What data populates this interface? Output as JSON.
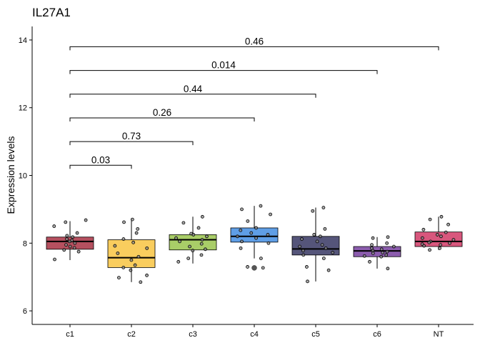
{
  "chart_data": {
    "type": "boxplot",
    "title": "IL27A1",
    "xlabel": "",
    "ylabel": "Expression levels",
    "ylim": [
      5.6,
      14.4
    ],
    "yticks": [
      6,
      8,
      10,
      12,
      14
    ],
    "categories": [
      "c1",
      "c2",
      "c3",
      "c4",
      "c5",
      "c6",
      "NT"
    ],
    "colors": [
      "#B5505F",
      "#F9CD5E",
      "#A9CD68",
      "#5F9EE6",
      "#55557A",
      "#8C5DAE",
      "#D8577D"
    ],
    "boxes": [
      {
        "group": "c1",
        "q1": 7.82,
        "median": 8.05,
        "q3": 8.18,
        "whisker_low": 7.5,
        "whisker_high": 8.65,
        "outliers": []
      },
      {
        "group": "c2",
        "q1": 7.28,
        "median": 7.57,
        "q3": 8.1,
        "whisker_low": 6.85,
        "whisker_high": 8.7,
        "outliers": []
      },
      {
        "group": "c3",
        "q1": 7.8,
        "median": 8.1,
        "q3": 8.25,
        "whisker_low": 7.4,
        "whisker_high": 8.78,
        "outliers": []
      },
      {
        "group": "c4",
        "q1": 8.03,
        "median": 8.2,
        "q3": 8.45,
        "whisker_low": 7.55,
        "whisker_high": 9.1,
        "outliers": [
          7.27
        ]
      },
      {
        "group": "c5",
        "q1": 7.65,
        "median": 7.83,
        "q3": 8.2,
        "whisker_low": 6.87,
        "whisker_high": 9.05,
        "outliers": []
      },
      {
        "group": "c6",
        "q1": 7.6,
        "median": 7.77,
        "q3": 7.9,
        "whisker_low": 7.25,
        "whisker_high": 8.18,
        "outliers": []
      },
      {
        "group": "NT",
        "q1": 7.9,
        "median": 8.05,
        "q3": 8.33,
        "whisker_low": 7.8,
        "whisker_high": 8.78,
        "outliers": []
      }
    ],
    "points": [
      {
        "group": "c1",
        "values": [
          8.68,
          8.62,
          8.5,
          8.3,
          8.22,
          8.18,
          8.12,
          8.08,
          8.05,
          8.0,
          7.95,
          7.9,
          7.86,
          7.8,
          7.75,
          7.52
        ]
      },
      {
        "group": "c2",
        "values": [
          8.7,
          8.62,
          8.42,
          8.3,
          8.12,
          8.02,
          7.92,
          7.85,
          7.7,
          7.6,
          7.5,
          7.35,
          7.28,
          7.2,
          7.05,
          6.98,
          6.85
        ]
      },
      {
        "group": "c3",
        "values": [
          8.78,
          8.6,
          8.45,
          8.28,
          8.25,
          8.2,
          8.15,
          8.1,
          8.05,
          7.98,
          7.9,
          7.82,
          7.78,
          7.65,
          7.55,
          7.45
        ]
      },
      {
        "group": "c4",
        "values": [
          9.1,
          9.0,
          8.85,
          8.65,
          8.45,
          8.38,
          8.3,
          8.25,
          8.2,
          8.15,
          8.05,
          8.0,
          7.85,
          7.55,
          7.3,
          7.27
        ]
      },
      {
        "group": "c5",
        "values": [
          9.05,
          8.95,
          8.42,
          8.25,
          8.2,
          8.12,
          8.05,
          7.95,
          7.9,
          7.85,
          7.78,
          7.72,
          7.65,
          7.55,
          7.3,
          7.2,
          6.87
        ]
      },
      {
        "group": "c6",
        "values": [
          8.18,
          8.15,
          8.0,
          7.95,
          7.9,
          7.85,
          7.82,
          7.78,
          7.75,
          7.72,
          7.7,
          7.65,
          7.62,
          7.6,
          7.45,
          7.25
        ]
      },
      {
        "group": "NT",
        "values": [
          8.78,
          8.7,
          8.55,
          8.4,
          8.32,
          8.25,
          8.2,
          8.15,
          8.1,
          8.05,
          8.02,
          8.0,
          7.97,
          7.95,
          7.92,
          7.85,
          7.8
        ]
      }
    ],
    "comparisons": [
      {
        "from": "c1",
        "to": "c2",
        "y": 10.3,
        "label": "0.03"
      },
      {
        "from": "c1",
        "to": "c3",
        "y": 11.0,
        "label": "0.73"
      },
      {
        "from": "c1",
        "to": "c4",
        "y": 11.7,
        "label": "0.26"
      },
      {
        "from": "c1",
        "to": "c5",
        "y": 12.4,
        "label": "0.44"
      },
      {
        "from": "c1",
        "to": "c6",
        "y": 13.1,
        "label": "0.014"
      },
      {
        "from": "c1",
        "to": "NT",
        "y": 13.8,
        "label": "0.46"
      }
    ],
    "grid": false,
    "legend": "none"
  }
}
